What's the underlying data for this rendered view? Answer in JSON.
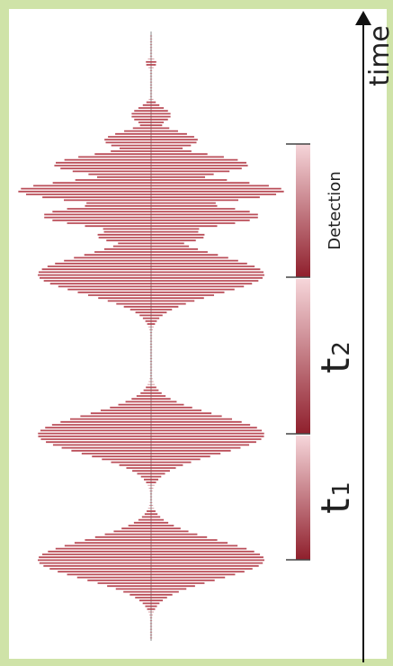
{
  "labels": {
    "time": "time",
    "detection": "Detection",
    "t1_base": "t",
    "t1_sub": "1",
    "t2_base": "t",
    "t2_sub": "2"
  },
  "colors": {
    "pulse": "#b33a46",
    "bracket_dark": "#8f1f2c",
    "bracket_light": "#f6d6da",
    "axis": "#111111",
    "background": "#cfe3a8"
  }
}
